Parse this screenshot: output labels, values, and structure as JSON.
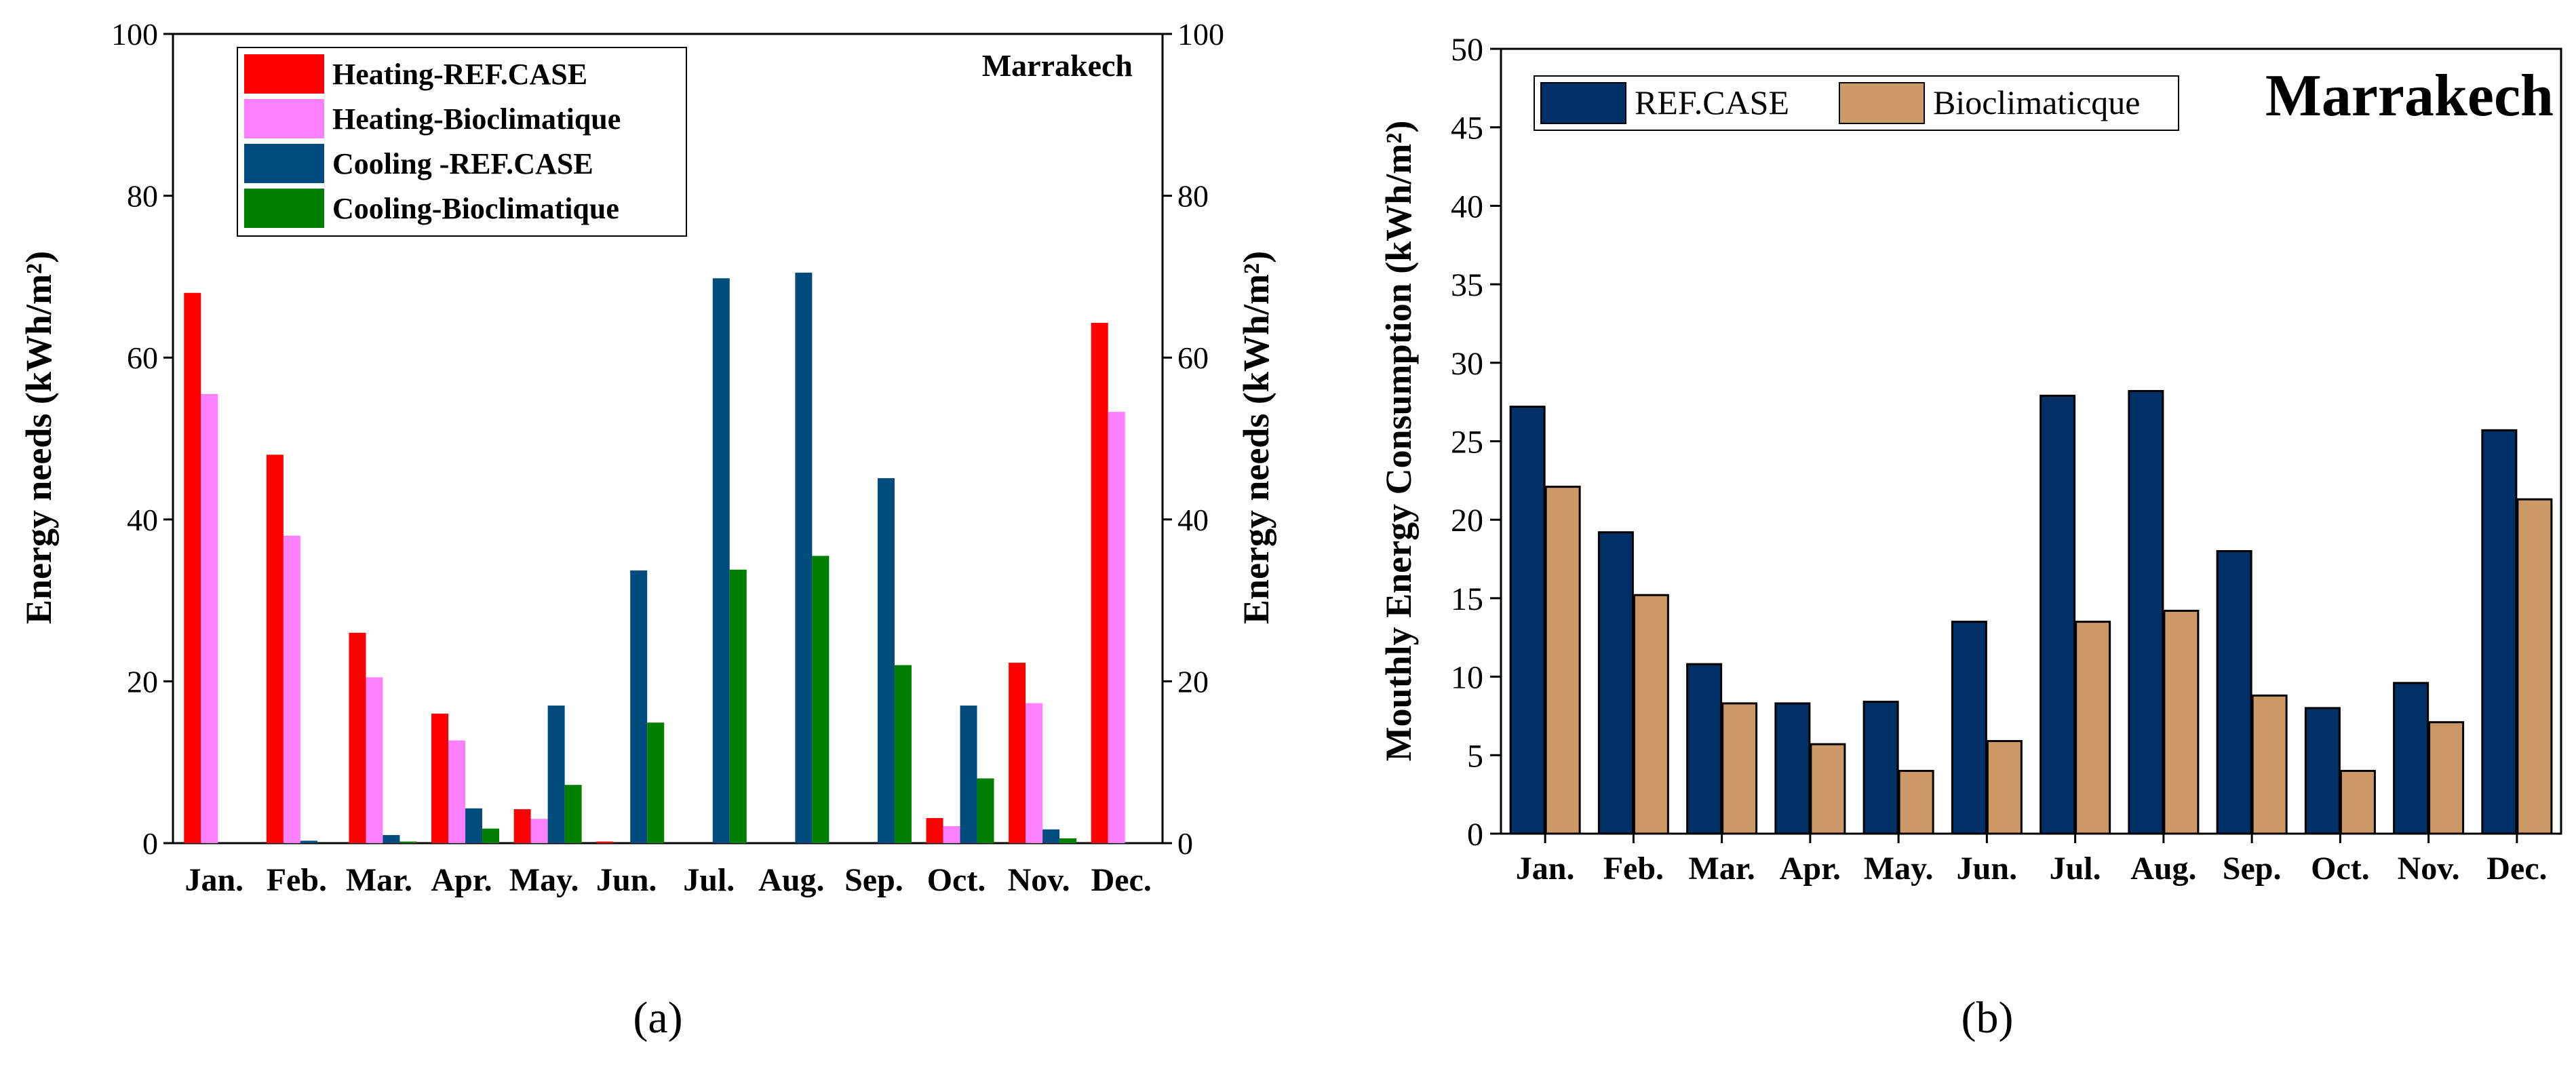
{
  "chart_data": [
    {
      "type": "bar",
      "panel_label": "(a)",
      "title": "Marrakech",
      "categories": [
        "Jan.",
        "Feb.",
        "Mar.",
        "Apr.",
        "May.",
        "Jun.",
        "Jul.",
        "Aug.",
        "Sep.",
        "Oct.",
        "Nov.",
        "Dec."
      ],
      "xlabel": "",
      "ylabel": "Energy needs (kWh/m²)",
      "ylabel_right": "Energy needs (kWh/m²)",
      "ylim": [
        0,
        100
      ],
      "yticks": [
        0,
        20,
        40,
        60,
        80,
        100
      ],
      "grid": false,
      "legend_position": "top-center",
      "series": [
        {
          "name": "Heating-REF.CASE",
          "color": "#ff0000",
          "values": [
            68,
            48,
            26,
            16,
            4.2,
            0.2,
            0,
            0,
            0,
            3.1,
            22.3,
            64.3
          ]
        },
        {
          "name": "Heating-Bioclimatique",
          "color": "#ff80ff",
          "values": [
            55.5,
            38,
            20.5,
            12.7,
            3,
            0,
            0,
            0,
            0,
            2.1,
            17.3,
            53.3
          ]
        },
        {
          "name": "Cooling -REF.CASE",
          "color": "#004c7f",
          "values": [
            0,
            0.3,
            1,
            4.3,
            17,
            33.7,
            69.8,
            70.5,
            45.1,
            17,
            1.7,
            0
          ]
        },
        {
          "name": "Cooling-Bioclimatique",
          "color": "#008000",
          "values": [
            0,
            0,
            0.2,
            1.8,
            7.2,
            14.9,
            33.8,
            35.5,
            22,
            8,
            0.6,
            0
          ]
        }
      ]
    },
    {
      "type": "bar",
      "panel_label": "(b)",
      "title": "Marrakech",
      "categories": [
        "Jan.",
        "Feb.",
        "Mar.",
        "Apr.",
        "May.",
        "Jun.",
        "Jul.",
        "Aug.",
        "Sep.",
        "Oct.",
        "Nov.",
        "Dec."
      ],
      "xlabel": "",
      "ylabel": "Mouthly Energy Consumption (kWh/m²)",
      "ylim": [
        0,
        50
      ],
      "yticks": [
        0,
        5,
        10,
        15,
        20,
        25,
        30,
        35,
        40,
        45,
        50
      ],
      "grid": false,
      "legend_position": "top-left",
      "series": [
        {
          "name": "REF.CASE",
          "color": "#003066",
          "values": [
            27.2,
            19.2,
            10.8,
            8.3,
            8.4,
            13.5,
            27.9,
            28.2,
            18,
            8,
            9.6,
            25.7
          ]
        },
        {
          "name": "Bioclimaticque",
          "color": "#cc9966",
          "values": [
            22.1,
            15.2,
            8.3,
            5.7,
            4,
            5.9,
            13.5,
            14.2,
            8.8,
            4,
            7.1,
            21.3
          ]
        }
      ]
    }
  ]
}
